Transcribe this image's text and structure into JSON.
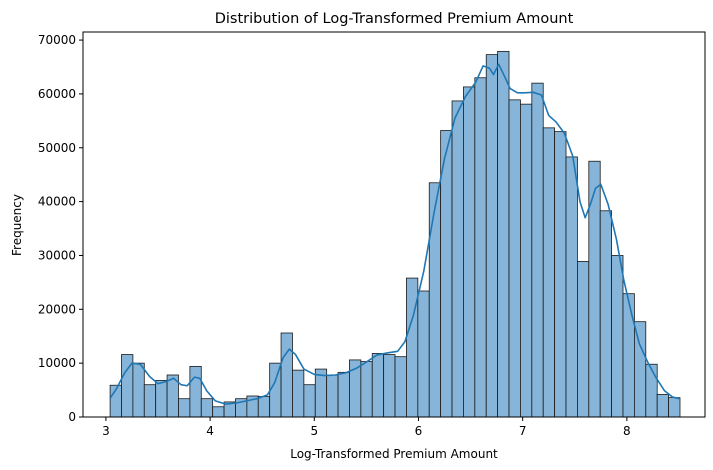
{
  "chart_data": {
    "type": "bar",
    "subtype": "histogram-with-kde",
    "title": "Distribution of Log-Transformed Premium Amount",
    "xlabel": "Log-Transformed Premium Amount",
    "ylabel": "Frequency",
    "xlim": [
      2.78,
      8.75
    ],
    "ylim": [
      0,
      71500
    ],
    "bin_width": 0.1094,
    "x_start": 3.04,
    "x_ticks": [
      3,
      4,
      5,
      6,
      7,
      8
    ],
    "y_ticks": [
      0,
      10000,
      20000,
      30000,
      40000,
      50000,
      60000,
      70000
    ],
    "grid": false,
    "legend": "none",
    "bar_fill": "#86b5d9",
    "bar_edge": "#1a1a1a",
    "kde_color": "#1f77b4",
    "values": [
      5900,
      11600,
      10000,
      6000,
      6800,
      7800,
      3400,
      9400,
      3400,
      1900,
      2800,
      3400,
      3900,
      3800,
      10000,
      15600,
      8700,
      6000,
      8900,
      7800,
      8300,
      10600,
      10300,
      11800,
      11600,
      11200,
      25800,
      23400,
      43500,
      53200,
      58700,
      61300,
      63000,
      67300,
      67900,
      58900,
      58100,
      62000,
      53700,
      53000,
      48300,
      28900,
      47500,
      38300,
      30000,
      22900,
      17700,
      9800,
      4200,
      3600
    ],
    "kde": [
      [
        3.04,
        3500
      ],
      [
        3.1,
        5200
      ],
      [
        3.18,
        8200
      ],
      [
        3.25,
        10000
      ],
      [
        3.33,
        9800
      ],
      [
        3.42,
        7500
      ],
      [
        3.5,
        6200
      ],
      [
        3.58,
        6600
      ],
      [
        3.65,
        7200
      ],
      [
        3.72,
        6000
      ],
      [
        3.78,
        5800
      ],
      [
        3.85,
        7400
      ],
      [
        3.9,
        7200
      ],
      [
        3.97,
        4800
      ],
      [
        4.05,
        3000
      ],
      [
        4.15,
        2400
      ],
      [
        4.25,
        2600
      ],
      [
        4.35,
        3000
      ],
      [
        4.45,
        3400
      ],
      [
        4.55,
        4100
      ],
      [
        4.62,
        6400
      ],
      [
        4.7,
        11000
      ],
      [
        4.76,
        12600
      ],
      [
        4.82,
        11600
      ],
      [
        4.9,
        8900
      ],
      [
        5.0,
        7900
      ],
      [
        5.1,
        7700
      ],
      [
        5.2,
        7800
      ],
      [
        5.3,
        8200
      ],
      [
        5.4,
        9000
      ],
      [
        5.5,
        10200
      ],
      [
        5.6,
        11500
      ],
      [
        5.7,
        11900
      ],
      [
        5.8,
        12200
      ],
      [
        5.87,
        14000
      ],
      [
        5.95,
        18800
      ],
      [
        6.05,
        27000
      ],
      [
        6.15,
        38000
      ],
      [
        6.25,
        48000
      ],
      [
        6.35,
        55500
      ],
      [
        6.45,
        59500
      ],
      [
        6.55,
        62200
      ],
      [
        6.62,
        65200
      ],
      [
        6.68,
        64800
      ],
      [
        6.72,
        63600
      ],
      [
        6.77,
        65500
      ],
      [
        6.82,
        63500
      ],
      [
        6.88,
        61000
      ],
      [
        6.95,
        60200
      ],
      [
        7.02,
        60200
      ],
      [
        7.1,
        60300
      ],
      [
        7.18,
        59800
      ],
      [
        7.25,
        56000
      ],
      [
        7.32,
        54800
      ],
      [
        7.4,
        52700
      ],
      [
        7.48,
        48500
      ],
      [
        7.55,
        40000
      ],
      [
        7.6,
        37000
      ],
      [
        7.65,
        39500
      ],
      [
        7.7,
        42500
      ],
      [
        7.75,
        43200
      ],
      [
        7.82,
        39500
      ],
      [
        7.9,
        33000
      ],
      [
        7.97,
        25500
      ],
      [
        8.05,
        18800
      ],
      [
        8.12,
        13600
      ],
      [
        8.2,
        10200
      ],
      [
        8.28,
        7300
      ],
      [
        8.36,
        4900
      ],
      [
        8.44,
        3700
      ],
      [
        8.5,
        3400
      ]
    ]
  },
  "labels": {
    "title": "Distribution of Log-Transformed Premium Amount",
    "xlabel": "Log-Transformed Premium Amount",
    "ylabel": "Frequency",
    "x_ticks": [
      "3",
      "4",
      "5",
      "6",
      "7",
      "8"
    ],
    "y_ticks": [
      "0",
      "10000",
      "20000",
      "30000",
      "40000",
      "50000",
      "60000",
      "70000"
    ]
  }
}
